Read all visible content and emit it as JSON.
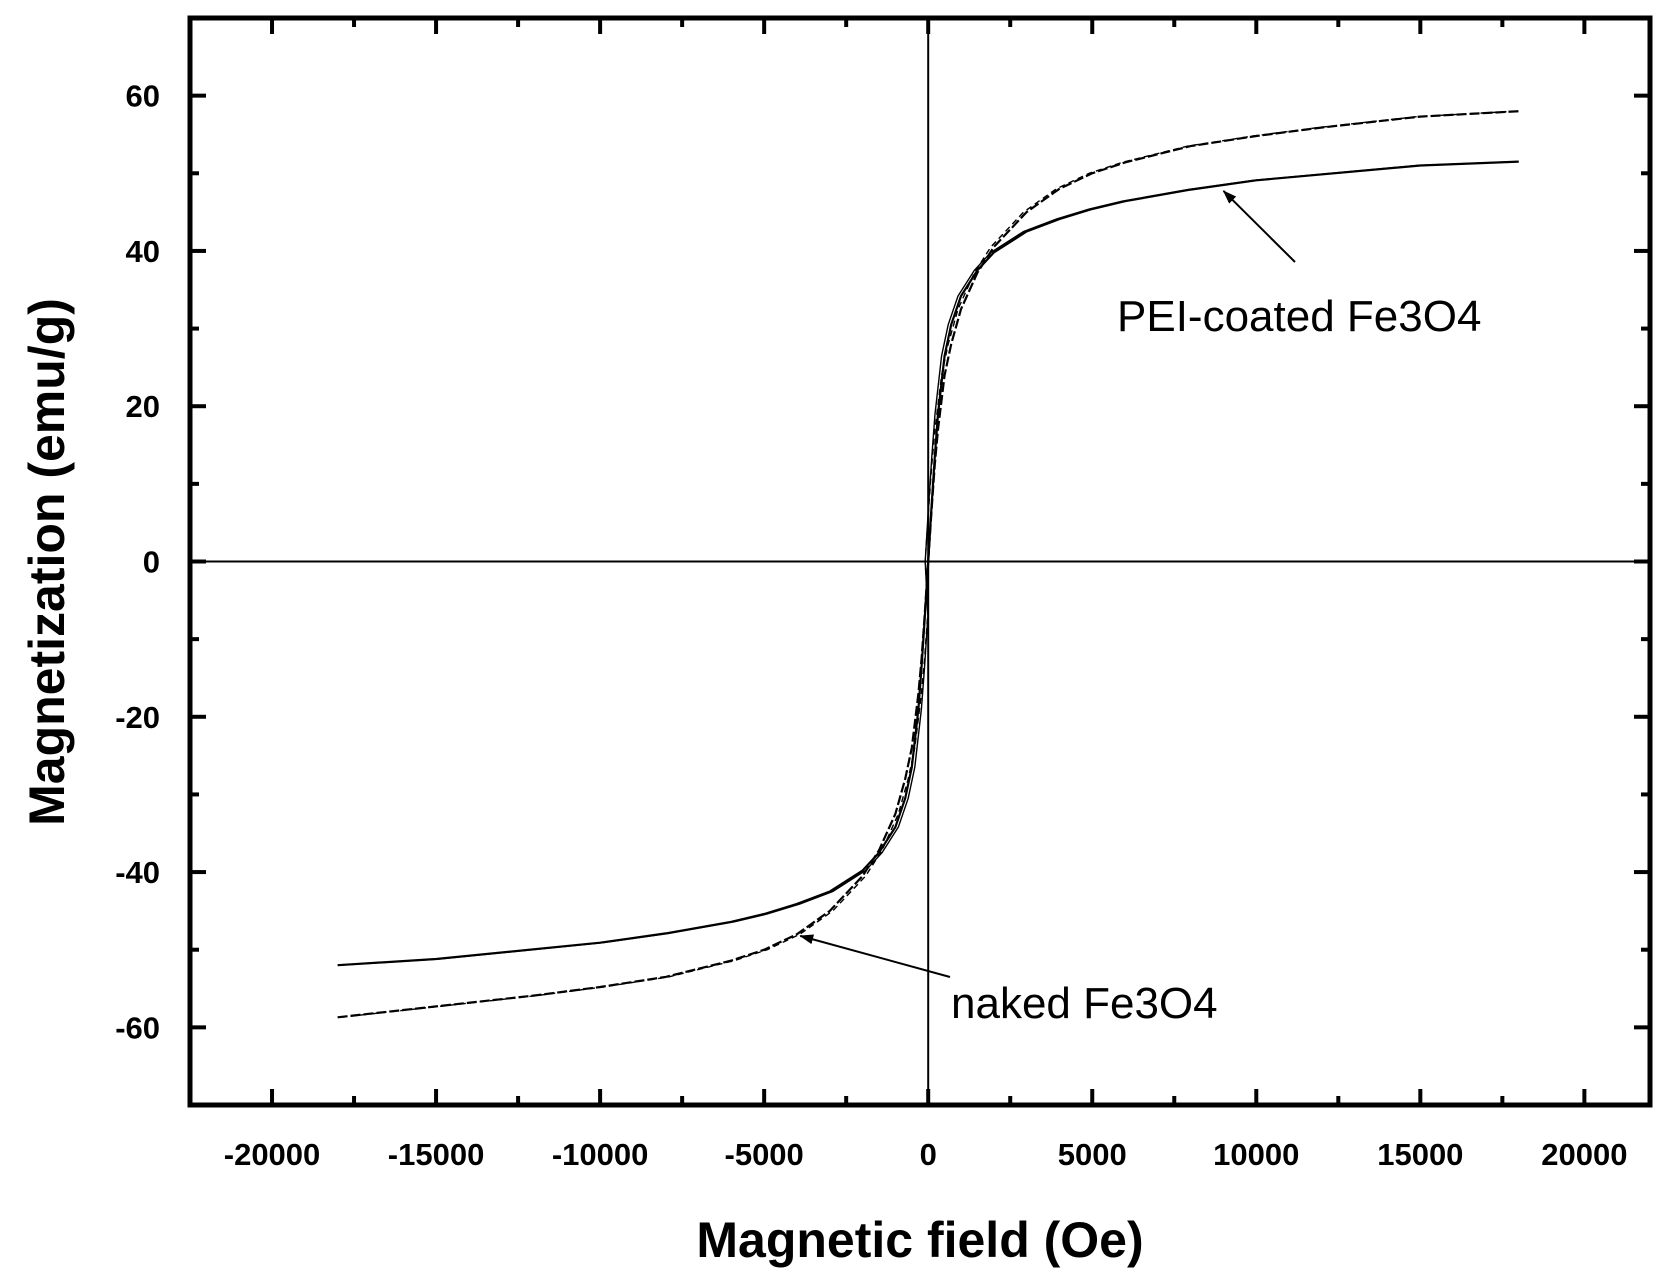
{
  "chart_data": {
    "type": "line",
    "title": "",
    "xlabel": "Magnetic field (Oe)",
    "ylabel": "Magnetization (emu/g)",
    "xlim": [
      -22500,
      22000
    ],
    "ylim": [
      -70,
      70
    ],
    "x_ticks": [
      -20000,
      -15000,
      -10000,
      -5000,
      0,
      5000,
      10000,
      15000,
      20000
    ],
    "x_tick_labels": [
      "-20000",
      "-15000",
      "-10000",
      "-5000",
      "0",
      "5000",
      "10000",
      "15000",
      "20000"
    ],
    "y_ticks": [
      -60,
      -40,
      -20,
      0,
      20,
      40,
      60
    ],
    "y_tick_labels": [
      "-60",
      "-40",
      "-20",
      "0",
      "20",
      "40",
      "60"
    ],
    "grid": false,
    "zero_lines": true,
    "series": [
      {
        "name": "PEI-coated Fe3O4",
        "color": "#000000",
        "style": "solid",
        "x": [
          -18000,
          -15000,
          -10000,
          -8000,
          -6000,
          -5000,
          -4000,
          -3000,
          -2000,
          -1500,
          -1000,
          -700,
          -500,
          -300,
          -200,
          -100,
          0,
          100,
          200,
          300,
          500,
          700,
          1000,
          1500,
          2000,
          3000,
          4000,
          5000,
          6000,
          8000,
          10000,
          15000,
          18000
        ],
        "y": [
          -52,
          -51.2,
          -49.1,
          -47.9,
          -46.4,
          -45.4,
          -44.1,
          -42.5,
          -39.8,
          -37.5,
          -34.2,
          -30.5,
          -26.5,
          -19.0,
          -13.5,
          -7.0,
          0,
          7.0,
          13.5,
          19.0,
          26.5,
          30.5,
          34.2,
          37.5,
          39.8,
          42.5,
          44.1,
          45.4,
          46.4,
          47.9,
          49.1,
          51.0,
          51.5
        ]
      },
      {
        "name": "naked Fe3O4",
        "color": "#000000",
        "style": "dashed",
        "x": [
          -18000,
          -15000,
          -12000,
          -10000,
          -8000,
          -6000,
          -5000,
          -4000,
          -3000,
          -2000,
          -1500,
          -1000,
          -700,
          -500,
          -300,
          -200,
          -100,
          0,
          100,
          200,
          300,
          500,
          700,
          1000,
          1500,
          2000,
          3000,
          4000,
          5000,
          6000,
          8000,
          10000,
          12000,
          15000,
          18000
        ],
        "y": [
          -58.7,
          -57.3,
          -55.9,
          -54.8,
          -53.5,
          -51.4,
          -50.0,
          -48.0,
          -45.0,
          -40.5,
          -37.2,
          -32.5,
          -28.0,
          -24.0,
          -17.0,
          -12.5,
          -6.5,
          0,
          6.5,
          12.5,
          17.0,
          24.0,
          28.0,
          32.5,
          37.2,
          40.5,
          45.0,
          48.0,
          50.0,
          51.4,
          53.5,
          54.8,
          55.9,
          57.3,
          58.0
        ]
      }
    ],
    "annotations": [
      {
        "text": "PEI-coated Fe3O4",
        "target_series": "PEI-coated Fe3O4"
      },
      {
        "text": "naked Fe3O4",
        "target_series": "naked Fe3O4"
      }
    ]
  }
}
